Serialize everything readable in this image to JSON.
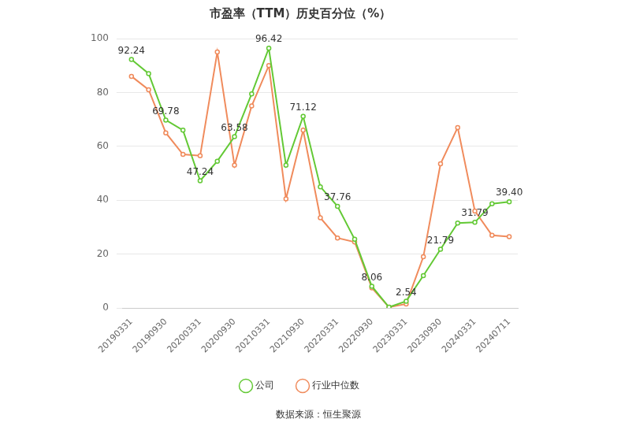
{
  "chart_data": {
    "type": "line",
    "title": "市盈率（TTM）历史百分位（%）",
    "source": "数据来源：恒生聚源",
    "categories": [
      "20190331",
      null,
      "20190930",
      null,
      "20200331",
      null,
      "20200930",
      null,
      "20210331",
      null,
      "20210930",
      null,
      "20220331",
      null,
      "20220930",
      null,
      "20230331",
      null,
      "20230930",
      null,
      "20240331",
      null,
      "20240711"
    ],
    "series": [
      {
        "name": "公司",
        "color": "#63c935",
        "marker": "circle",
        "data_labels": true,
        "values": [
          92.24,
          87,
          69.78,
          66,
          47.24,
          54.5,
          63.58,
          79.5,
          96.42,
          53,
          71.12,
          45,
          37.76,
          25.5,
          8.06,
          0.3,
          2.54,
          12,
          21.79,
          31.5,
          31.79,
          38.7,
          39.4
        ],
        "value_labels": [
          "92.24",
          null,
          "69.78",
          null,
          "47.24",
          null,
          "63.58",
          null,
          "96.42",
          null,
          "71.12",
          null,
          "37.76",
          null,
          "8.06",
          null,
          "2.54",
          null,
          "21.79",
          null,
          "31.79",
          null,
          "39.40"
        ]
      },
      {
        "name": "行业中位数",
        "color": "#f08b5c",
        "marker": "circle",
        "values": [
          86,
          81,
          65,
          57,
          56.5,
          95,
          53,
          75,
          90,
          40.5,
          66,
          33.5,
          26,
          24.5,
          7.5,
          0.3,
          1.5,
          19,
          53.5,
          67,
          36,
          27,
          26.5
        ]
      }
    ],
    "ylim": [
      0,
      100
    ],
    "yticks": [
      0,
      20,
      40,
      60,
      80,
      100
    ],
    "grid": true,
    "legend": "bottom"
  }
}
